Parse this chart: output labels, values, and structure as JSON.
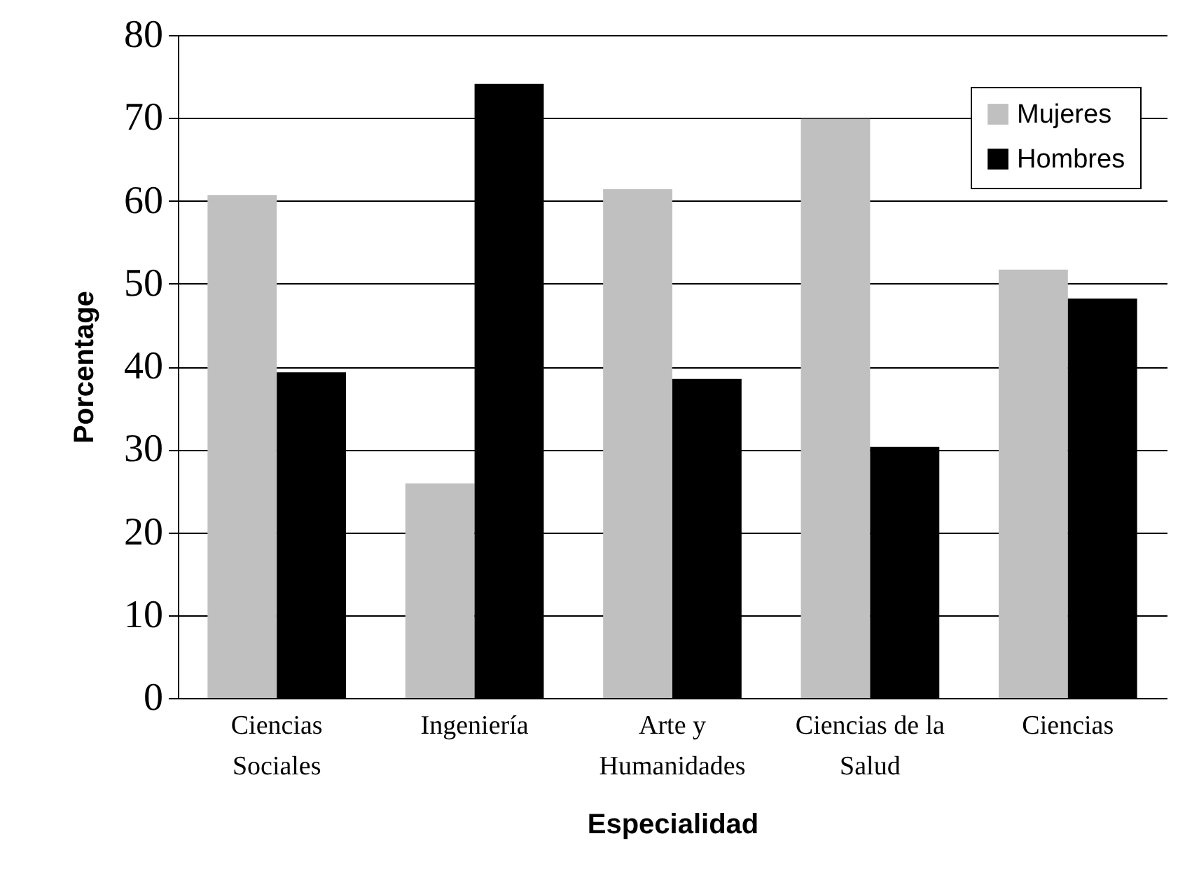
{
  "chart_data": {
    "type": "bar",
    "xlabel": "Especialidad",
    "ylabel": "Porcentage",
    "categories": [
      "Ciencias Sociales",
      "Ingeniería",
      "Arte y Humanidades",
      "Ciencias de la Salud",
      "Ciencias"
    ],
    "series": [
      {
        "name": "Mujeres",
        "color": "#c0c0c0",
        "values": [
          60.7,
          25.9,
          61.4,
          69.9,
          51.7
        ]
      },
      {
        "name": "Hombres",
        "color": "#000000",
        "values": [
          39.3,
          74.1,
          38.5,
          30.3,
          48.2
        ]
      }
    ],
    "ylim": [
      0,
      80
    ],
    "yticks": [
      0,
      10,
      20,
      30,
      40,
      50,
      60,
      70,
      80
    ],
    "grid": "y",
    "legend": "top right"
  }
}
